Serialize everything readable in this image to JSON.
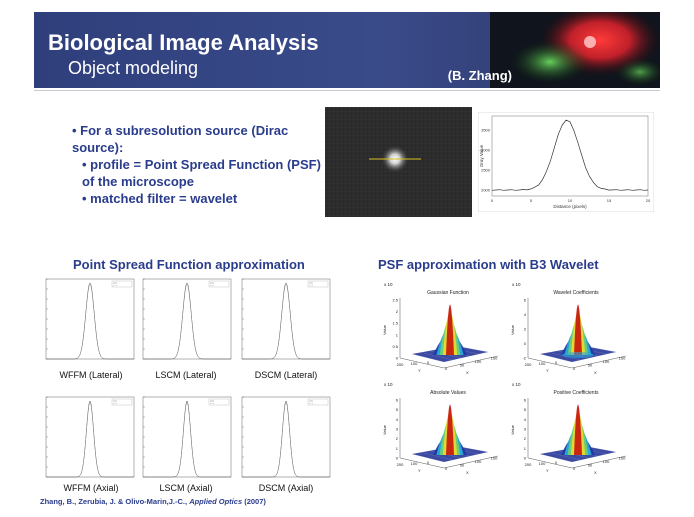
{
  "header": {
    "title": "Biological Image Analysis",
    "subtitle": "Object modeling",
    "author": "(B. Zhang)"
  },
  "bullets": [
    {
      "text": "• For a subresolution source (Dirac source):",
      "level": 1
    },
    {
      "text": "• profile = Point Spread Function (PSF) of the microscope",
      "level": 2
    },
    {
      "text": "• matched filter = wavelet",
      "level": 2
    }
  ],
  "profile_chart": {
    "xlabel": "Distance (pixels)",
    "ylabel": "Gray Value",
    "x_ticks": [
      "0",
      "5",
      "10",
      "15",
      "20"
    ],
    "y_ticks": [
      "2000",
      "2500",
      "3000",
      "3500"
    ]
  },
  "sections": {
    "left_title": "Point Spread Function approximation",
    "right_title": "PSF approximation with B3 Wavelet"
  },
  "psf_plots": [
    {
      "caption": "WFFM (Lateral)"
    },
    {
      "caption": "LSCM (Lateral)"
    },
    {
      "caption": "DSCM (Lateral)"
    },
    {
      "caption": "WFFM (Axial)"
    },
    {
      "caption": "LSCM (Axial)"
    },
    {
      "caption": "DSCM (Axial)"
    }
  ],
  "surface_plots": [
    {
      "title": "Gaussian Function",
      "exp": "x 10",
      "zticks": [
        "2.5",
        "2",
        "1.5",
        "1",
        "0.5",
        "0"
      ]
    },
    {
      "title": "Wavelet Coefficients",
      "exp": "x 10",
      "zticks": [
        "6",
        "4",
        "2",
        "0",
        "-2"
      ]
    },
    {
      "title": "Absolute Values",
      "exp": "x 10",
      "zticks": [
        "6",
        "5",
        "4",
        "3",
        "2",
        "1",
        "0"
      ]
    },
    {
      "title": "Positive Coefficients",
      "exp": "x 10",
      "zticks": [
        "6",
        "5",
        "4",
        "3",
        "2",
        "1",
        "0"
      ]
    }
  ],
  "surface_axes": {
    "zlabel": "Value",
    "xlabel": "X",
    "ylabel": "Y",
    "ticks_a": [
      "200",
      "100",
      "0"
    ],
    "ticks_b": [
      "0",
      "50",
      "100",
      "150"
    ]
  },
  "reference": {
    "authors": "Zhang, B., Zerubia, J. & Olivo-Marin,J.-C., ",
    "journal": "Applied Optics",
    "year": " (2007)"
  }
}
